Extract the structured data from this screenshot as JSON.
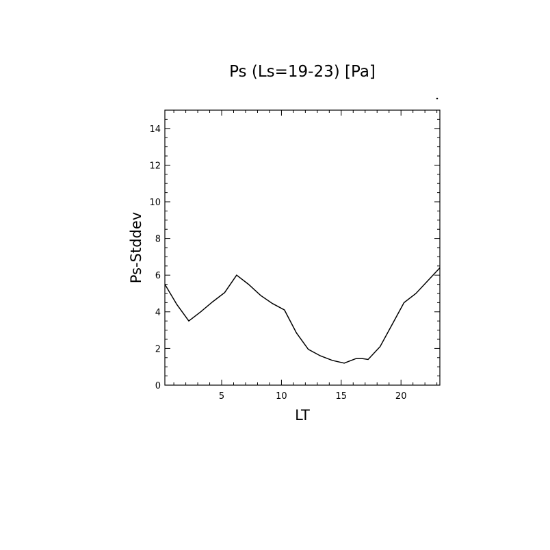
{
  "chart_data": {
    "type": "line",
    "title": "Ps (Ls=19-23) [Pa]",
    "xlabel": "LT",
    "ylabel": "Ps-Stddev",
    "xlim": [
      0.25,
      23.25
    ],
    "ylim": [
      0,
      15
    ],
    "xticks": [
      5,
      10,
      15,
      20
    ],
    "yticks": [
      0,
      2,
      4,
      6,
      8,
      10,
      12,
      14
    ],
    "grid": false,
    "series": [
      {
        "x": [
          0.25,
          1.25,
          2.25,
          3.25,
          4.25,
          5.25,
          6.25,
          7.25,
          8.25,
          9.25,
          10.25,
          11.25,
          12.25,
          13.25,
          14.25,
          15.25,
          16.25,
          16.75,
          17.25,
          18.25,
          19.25,
          20.25,
          21.25,
          22.25,
          23.25
        ],
        "values": [
          5.5,
          4.4,
          3.5,
          4.0,
          4.55,
          5.05,
          6.0,
          5.5,
          4.9,
          4.45,
          4.1,
          2.85,
          1.95,
          1.6,
          1.35,
          1.2,
          1.45,
          1.45,
          1.4,
          2.1,
          3.3,
          4.5,
          5.0,
          5.7,
          6.4
        ]
      }
    ]
  }
}
